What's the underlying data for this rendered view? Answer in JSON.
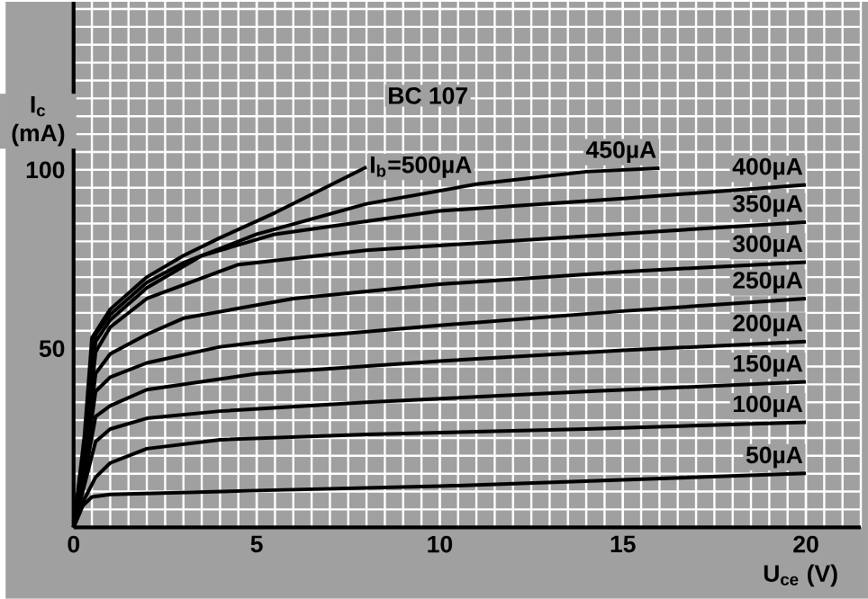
{
  "chart_data": {
    "type": "line",
    "title": "BC 107",
    "xlabel": "U$_{ce}$ (V)",
    "ylabel": "I$_{c}$ (mA)",
    "xlim": [
      0,
      21.5
    ],
    "ylim": [
      0,
      147
    ],
    "xticks": [
      0,
      5,
      10,
      15,
      20
    ],
    "yticks": [
      50,
      100
    ],
    "grid": true,
    "marker": "none",
    "line_style": "solid",
    "series": [
      {
        "name": "50µA",
        "color": "#000000",
        "x": [
          0,
          0.25,
          0.5,
          1,
          5,
          10,
          15,
          20
        ],
        "values": [
          0,
          6,
          8.5,
          9.2,
          10.3,
          11.5,
          13.3,
          15.1
        ]
      },
      {
        "name": "100µA",
        "color": "#000000",
        "x": [
          0,
          0.3,
          0.6,
          1,
          2,
          4,
          8,
          14,
          20
        ],
        "values": [
          0,
          8,
          14,
          18,
          22,
          24.5,
          26,
          27.5,
          29.4
        ]
      },
      {
        "name": "150µA",
        "color": "#000000",
        "x": [
          0,
          0.3,
          0.6,
          1,
          2,
          4,
          8,
          14,
          20
        ],
        "values": [
          0,
          12,
          24,
          27.5,
          30.5,
          32.5,
          35,
          38,
          40.7
        ]
      },
      {
        "name": "200µA",
        "color": "#000000",
        "x": [
          0,
          0.3,
          0.6,
          1,
          2,
          5,
          10,
          15,
          20
        ],
        "values": [
          0,
          14,
          31,
          34,
          38.5,
          43,
          46.5,
          49.5,
          52
        ]
      },
      {
        "name": "250µA",
        "color": "#000000",
        "x": [
          0,
          0.3,
          0.6,
          1,
          2,
          4,
          6,
          10,
          15,
          20
        ],
        "values": [
          0,
          16,
          38,
          42,
          46,
          50.5,
          53,
          56.5,
          60.5,
          64
        ]
      },
      {
        "name": "300µA",
        "color": "#000000",
        "x": [
          0,
          0.3,
          0.6,
          1,
          2,
          3,
          6,
          10,
          15,
          20
        ],
        "values": [
          0,
          18,
          43,
          48.5,
          54,
          58.5,
          64,
          68,
          71.5,
          74.2
        ]
      },
      {
        "name": "350µA",
        "color": "#000000",
        "x": [
          0,
          0.3,
          0.6,
          1,
          2,
          4.5,
          8,
          14,
          20
        ],
        "values": [
          0,
          20,
          49,
          56,
          64,
          73.5,
          77.5,
          81.5,
          85.4
        ]
      },
      {
        "name": "400µA",
        "color": "#000000",
        "x": [
          0,
          0.3,
          0.6,
          1,
          2,
          3.5,
          5.5,
          10,
          15,
          20
        ],
        "values": [
          0,
          22,
          52,
          58,
          67,
          76,
          82,
          88.5,
          92,
          95.8
        ]
      },
      {
        "name": "450µA",
        "color": "#000000",
        "x": [
          0,
          0.3,
          0.6,
          1,
          2,
          3,
          5,
          8,
          11,
          14,
          16
        ],
        "values": [
          0,
          24,
          54,
          59.5,
          68.5,
          74,
          82,
          90.5,
          96,
          99.5,
          100.5
        ]
      },
      {
        "name": "I$_{b}$=500µA",
        "color": "#000000",
        "x": [
          0,
          0.3,
          0.5,
          1,
          2,
          3,
          4,
          5.5,
          8
        ],
        "values": [
          0,
          26,
          53,
          61,
          70,
          76,
          81,
          88,
          100.8
        ]
      }
    ]
  }
}
